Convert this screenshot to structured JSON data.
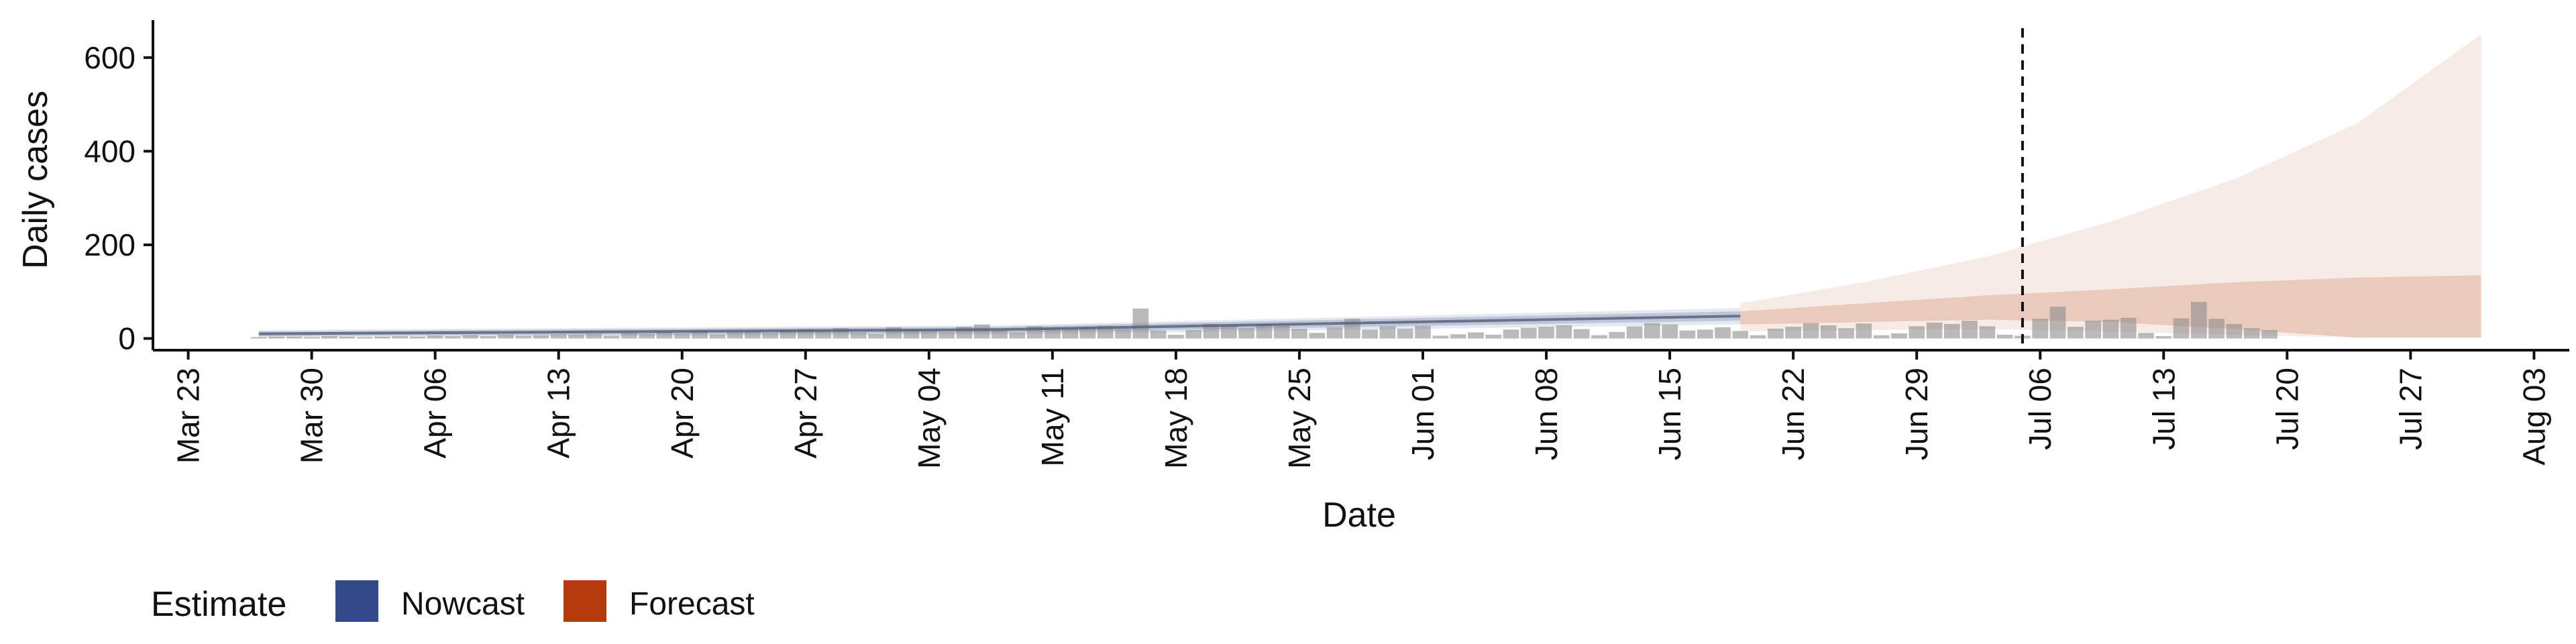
{
  "chart_data": {
    "type": "bar",
    "xlabel": "Date",
    "ylabel": "Daily cases",
    "x_axis": {
      "type": "date",
      "range": [
        "2020-03-21",
        "2020-08-05"
      ],
      "ticks": [
        "2020-03-23",
        "2020-03-30",
        "2020-04-06",
        "2020-04-13",
        "2020-04-20",
        "2020-04-27",
        "2020-05-04",
        "2020-05-11",
        "2020-05-18",
        "2020-05-25",
        "2020-06-01",
        "2020-06-08",
        "2020-06-15",
        "2020-06-22",
        "2020-06-29",
        "2020-07-06",
        "2020-07-13",
        "2020-07-20",
        "2020-07-27",
        "2020-08-03"
      ],
      "tick_labels": [
        "Mar 23",
        "Mar 30",
        "Apr 06",
        "Apr 13",
        "Apr 20",
        "Apr 27",
        "May 04",
        "May 11",
        "May 18",
        "May 25",
        "Jun 01",
        "Jun 08",
        "Jun 15",
        "Jun 22",
        "Jun 29",
        "Jul 06",
        "Jul 13",
        "Jul 20",
        "Jul 27",
        "Aug 03"
      ]
    },
    "y_axis": {
      "range": [
        -25,
        680
      ],
      "ticks": [
        0,
        200,
        400,
        600
      ],
      "tick_labels": [
        "0",
        "200",
        "400",
        "600"
      ]
    },
    "grid": false,
    "reference_line": {
      "date": "2020-07-05",
      "style": "dashed"
    },
    "legend": {
      "title": "Estimate",
      "placement": "bottom-left",
      "entries": [
        {
          "label": "Nowcast",
          "color": "#34498a"
        },
        {
          "label": "Forecast",
          "color": "#b53a0c"
        }
      ]
    },
    "observed_cases": {
      "color": "#8c8c8c",
      "start_date": "2020-03-27",
      "values": [
        3,
        4,
        4,
        3,
        5,
        4,
        3,
        4,
        5,
        4,
        6,
        5,
        7,
        5,
        8,
        6,
        7,
        9,
        8,
        10,
        6,
        12,
        10,
        14,
        11,
        17,
        9,
        13,
        15,
        12,
        18,
        20,
        16,
        22,
        13,
        10,
        24,
        19,
        16,
        14,
        25,
        30,
        18,
        13,
        26,
        23,
        22,
        24,
        27,
        20,
        64,
        17,
        8,
        18,
        31,
        28,
        22,
        30,
        27,
        21,
        12,
        24,
        42,
        19,
        26,
        21,
        27,
        6,
        9,
        13,
        8,
        19,
        23,
        25,
        28,
        20,
        7,
        14,
        26,
        33,
        30,
        17,
        19,
        24,
        16,
        7,
        21,
        25,
        33,
        28,
        22,
        32,
        7,
        11,
        26,
        34,
        31,
        38,
        26,
        8,
        6,
        42,
        68,
        25,
        38,
        40,
        44,
        12,
        5,
        43,
        78,
        42,
        31,
        22,
        18
      ]
    },
    "nowcast": {
      "color": "#34498a",
      "start_date": "2020-03-27",
      "end_date": "2020-06-19",
      "median": [
        10,
        19,
        48
      ],
      "inner": [
        [
          5,
          15
        ],
        [
          12,
          25
        ],
        [
          38,
          58
        ]
      ],
      "outer": [
        [
          2,
          18
        ],
        [
          8,
          28
        ],
        [
          30,
          65
        ]
      ]
    },
    "forecast": {
      "color": "#b53a0c",
      "start_date": "2020-06-19",
      "end_date": "2020-07-31",
      "inner": [
        [
          30,
          58
        ],
        [
          35,
          75
        ],
        [
          40,
          92
        ],
        [
          35,
          105
        ],
        [
          20,
          120
        ],
        [
          2,
          130
        ],
        [
          2,
          135
        ]
      ],
      "outer": [
        [
          15,
          75
        ],
        [
          18,
          120
        ],
        [
          20,
          175
        ],
        [
          15,
          250
        ],
        [
          8,
          340
        ],
        [
          2,
          460
        ],
        [
          2,
          650
        ]
      ]
    }
  }
}
